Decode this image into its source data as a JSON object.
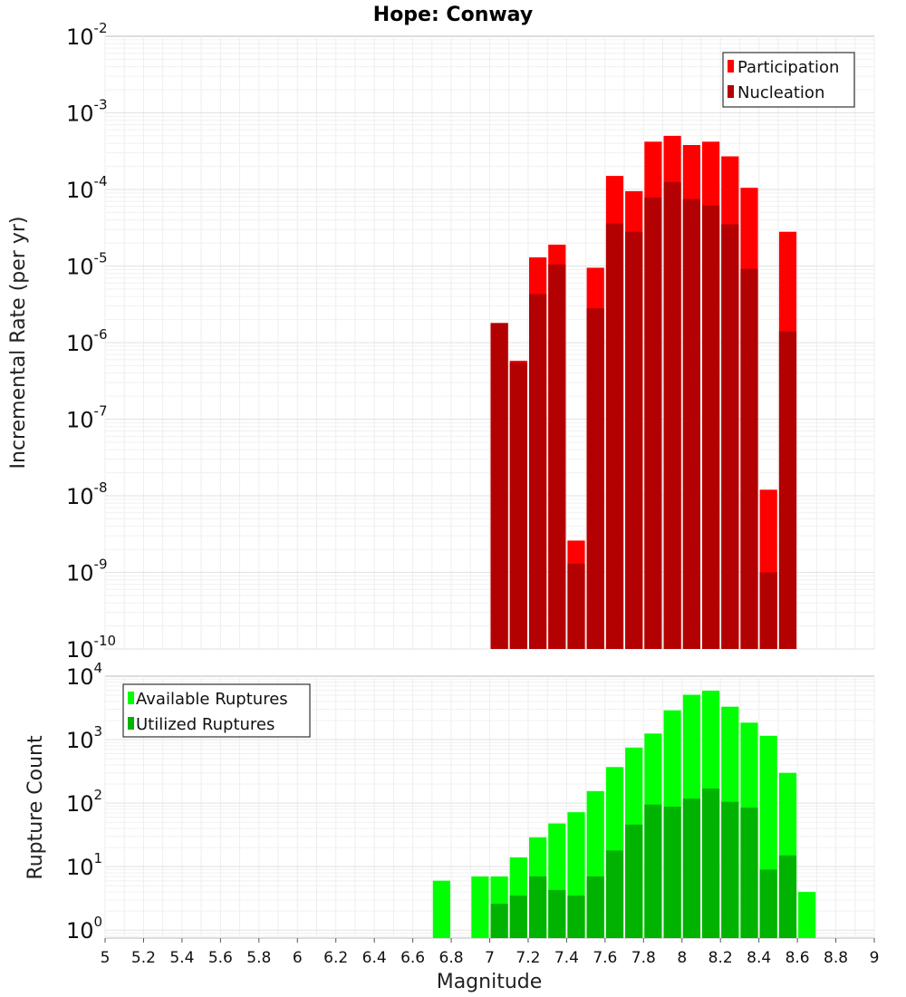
{
  "chart_data": [
    {
      "type": "bar",
      "title": "Hope: Conway",
      "xlabel": "",
      "ylabel": "Incremental Rate (per yr)",
      "yscale": "log",
      "ylim": [
        1e-10,
        0.01
      ],
      "xlim": [
        5,
        9
      ],
      "ytick_exponents": [
        -10,
        -9,
        -8,
        -7,
        -6,
        -5,
        -4,
        -3,
        -2
      ],
      "legend": {
        "placement": "top-right",
        "entries": [
          "Participation",
          "Nucleation"
        ]
      },
      "grid": true,
      "bin_width": 0.1,
      "colors": {
        "Participation": "#ff0000",
        "Nucleation": "#b30000"
      },
      "x": [
        7.05,
        7.15,
        7.25,
        7.35,
        7.45,
        7.55,
        7.65,
        7.75,
        7.85,
        7.95,
        8.05,
        8.15,
        8.25,
        8.35,
        8.45,
        8.55
      ],
      "series": [
        {
          "name": "Participation",
          "values": [
            1.8e-06,
            5.8e-07,
            1.3e-05,
            1.9e-05,
            2.6e-09,
            9.5e-06,
            0.00015,
            9.5e-05,
            0.00042,
            0.0005,
            0.00038,
            0.00042,
            0.00027,
            0.000105,
            1.2e-08,
            2.8e-05
          ]
        },
        {
          "name": "Nucleation",
          "values": [
            1.8e-06,
            5.5e-07,
            4.3e-06,
            1.05e-05,
            1.3e-09,
            2.8e-06,
            3.6e-05,
            2.8e-05,
            7.8e-05,
            0.000125,
            7.5e-05,
            6.2e-05,
            3.5e-05,
            9.2e-06,
            1e-09,
            1.4e-06
          ]
        }
      ]
    },
    {
      "type": "bar",
      "title": "",
      "xlabel": "Magnitude",
      "ylabel": "Rupture Count",
      "yscale": "log",
      "ylim": [
        0.75,
        10000
      ],
      "xlim": [
        5,
        9
      ],
      "ytick_exponents": [
        0,
        1,
        2,
        3,
        4
      ],
      "xticks": [
        "5",
        "5.2",
        "5.4",
        "5.6",
        "5.8",
        "6",
        "6.2",
        "6.4",
        "6.6",
        "6.8",
        "7",
        "7.2",
        "7.4",
        "7.6",
        "7.8",
        "8",
        "8.2",
        "8.4",
        "8.6",
        "8.8",
        "9"
      ],
      "legend": {
        "placement": "top-left",
        "entries": [
          "Available Ruptures",
          "Utilized Ruptures"
        ]
      },
      "grid": true,
      "bin_width": 0.1,
      "colors": {
        "Available Ruptures": "#00ff00",
        "Utilized Ruptures": "#00b300"
      },
      "x": [
        6.75,
        6.95,
        7.05,
        7.15,
        7.25,
        7.35,
        7.45,
        7.55,
        7.65,
        7.75,
        7.85,
        7.95,
        8.05,
        8.15,
        8.25,
        8.35,
        8.45,
        8.55,
        8.65
      ],
      "series": [
        {
          "name": "Available Ruptures",
          "values": [
            6,
            7,
            7,
            14,
            29,
            48,
            72,
            155,
            370,
            750,
            1250,
            2900,
            5100,
            5900,
            3300,
            1850,
            1150,
            300,
            4
          ]
        },
        {
          "name": "Utilized Ruptures",
          "values": [
            0,
            0,
            2.6,
            3.5,
            7,
            4.3,
            3.5,
            7,
            18,
            46,
            95,
            88,
            118,
            170,
            105,
            85,
            9,
            15,
            0
          ]
        }
      ]
    }
  ]
}
